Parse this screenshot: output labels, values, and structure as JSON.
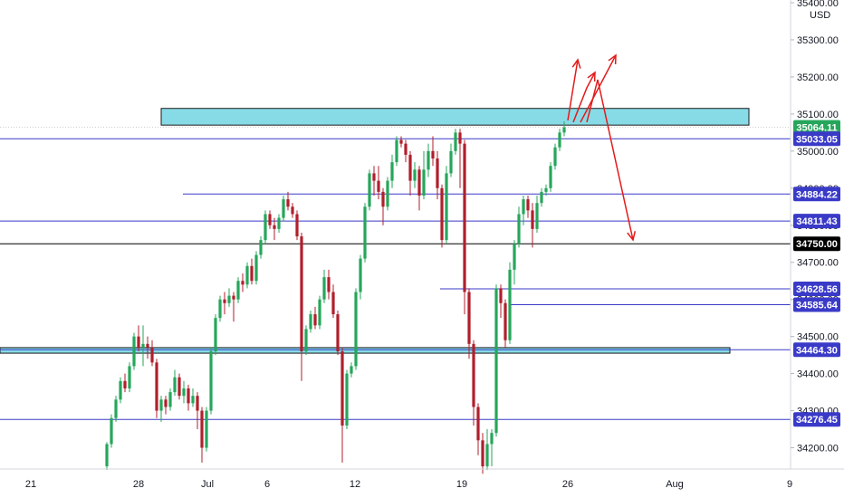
{
  "currency": "USD",
  "chart_data": {
    "type": "candlestick",
    "x_ticks": [
      "21",
      "28",
      "Jul",
      "6",
      "12",
      "19",
      "26",
      "Aug",
      "9"
    ],
    "y_ticks": [
      "34200.00",
      "34300.00",
      "34400.00",
      "34500.00",
      "34600.00",
      "34700.00",
      "34800.00",
      "34900.00",
      "35000.00",
      "35100.00",
      "35200.00",
      "35300.00",
      "35400.00"
    ],
    "ylim": [
      34150,
      35400
    ],
    "price_lines": [
      {
        "value": 35033.05,
        "label": "35033.05",
        "color": "#3a3ac8"
      },
      {
        "value": 34884.22,
        "label": "34884.22",
        "color": "#3a3ac8"
      },
      {
        "value": 34811.43,
        "label": "34811.43",
        "color": "#3a3ac8"
      },
      {
        "value": 34750.0,
        "label": "34750.00",
        "color": "#000000"
      },
      {
        "value": 34628.56,
        "label": "34628.56",
        "color": "#3a3ac8"
      },
      {
        "value": 34585.64,
        "label": "34585.64",
        "color": "#3a3ac8"
      },
      {
        "value": 34464.3,
        "label": "34464.30",
        "color": "#3a3ac8"
      },
      {
        "value": 34276.45,
        "label": "34276.45",
        "color": "#3a3ac8"
      }
    ],
    "last_price": {
      "value": 35064.11,
      "label": "35064.11",
      "color": "#26a65b"
    },
    "zones": [
      {
        "name": "resistance-zone",
        "low": 35070,
        "high": 35115,
        "color": "#87dbe6"
      },
      {
        "name": "support-zone",
        "low": 34455,
        "high": 34470,
        "color": "#87dbe6"
      }
    ],
    "up_color": "#26a65b",
    "down_color": "#b01f2c",
    "arrow_color": "#e31b1b",
    "candles": [
      [
        34150,
        34210,
        34140,
        34215
      ],
      [
        34210,
        34280,
        34200,
        34290
      ],
      [
        34280,
        34330,
        34270,
        34340
      ],
      [
        34330,
        34380,
        34320,
        34390
      ],
      [
        34380,
        34360,
        34350,
        34400
      ],
      [
        34360,
        34420,
        34350,
        34430
      ],
      [
        34420,
        34500,
        34410,
        34510
      ],
      [
        34500,
        34470,
        34460,
        34530
      ],
      [
        34470,
        34480,
        34420,
        34530
      ],
      [
        34480,
        34470,
        34440,
        34500
      ],
      [
        34470,
        34430,
        34420,
        34490
      ],
      [
        34430,
        34300,
        34280,
        34440
      ],
      [
        34300,
        34330,
        34270,
        34340
      ],
      [
        34330,
        34310,
        34290,
        34340
      ],
      [
        34310,
        34350,
        34300,
        34360
      ],
      [
        34350,
        34390,
        34340,
        34410
      ],
      [
        34390,
        34340,
        34330,
        34400
      ],
      [
        34340,
        34360,
        34320,
        34380
      ],
      [
        34360,
        34320,
        34300,
        34370
      ],
      [
        34320,
        34340,
        34310,
        34360
      ],
      [
        34340,
        34300,
        34250,
        34350
      ],
      [
        34300,
        34200,
        34160,
        34310
      ],
      [
        34200,
        34300,
        34190,
        34310
      ],
      [
        34300,
        34460,
        34290,
        34470
      ],
      [
        34460,
        34550,
        34450,
        34560
      ],
      [
        34550,
        34600,
        34540,
        34610
      ],
      [
        34600,
        34590,
        34560,
        34620
      ],
      [
        34590,
        34610,
        34580,
        34630
      ],
      [
        34610,
        34600,
        34540,
        34620
      ],
      [
        34600,
        34650,
        34590,
        34660
      ],
      [
        34650,
        34640,
        34620,
        34670
      ],
      [
        34640,
        34690,
        34630,
        34700
      ],
      [
        34690,
        34650,
        34640,
        34710
      ],
      [
        34650,
        34720,
        34640,
        34730
      ],
      [
        34720,
        34760,
        34710,
        34770
      ],
      [
        34760,
        34830,
        34750,
        34840
      ],
      [
        34830,
        34800,
        34790,
        34840
      ],
      [
        34800,
        34790,
        34760,
        34820
      ],
      [
        34790,
        34820,
        34780,
        34830
      ],
      [
        34820,
        34870,
        34810,
        34880
      ],
      [
        34870,
        34850,
        34840,
        34890
      ],
      [
        34850,
        34830,
        34820,
        34860
      ],
      [
        34830,
        34770,
        34760,
        34840
      ],
      [
        34770,
        34460,
        34380,
        34780
      ],
      [
        34460,
        34520,
        34450,
        34530
      ],
      [
        34520,
        34560,
        34510,
        34570
      ],
      [
        34560,
        34530,
        34520,
        34580
      ],
      [
        34530,
        34600,
        34520,
        34610
      ],
      [
        34600,
        34660,
        34590,
        34680
      ],
      [
        34660,
        34620,
        34600,
        34680
      ],
      [
        34620,
        34560,
        34550,
        34640
      ],
      [
        34560,
        34460,
        34450,
        34570
      ],
      [
        34460,
        34260,
        34160,
        34470
      ],
      [
        34260,
        34400,
        34250,
        34410
      ],
      [
        34400,
        34420,
        34390,
        34430
      ],
      [
        34420,
        34620,
        34410,
        34630
      ],
      [
        34620,
        34710,
        34600,
        34720
      ],
      [
        34710,
        34850,
        34700,
        34860
      ],
      [
        34850,
        34940,
        34840,
        34950
      ],
      [
        34940,
        34920,
        34880,
        34960
      ],
      [
        34920,
        34890,
        34870,
        34960
      ],
      [
        34890,
        34850,
        34800,
        34900
      ],
      [
        34850,
        34920,
        34840,
        34930
      ],
      [
        34920,
        34970,
        34900,
        34990
      ],
      [
        34970,
        35030,
        34960,
        35040
      ],
      [
        35030,
        35020,
        35010,
        35040
      ],
      [
        35020,
        34990,
        34970,
        35030
      ],
      [
        34990,
        34920,
        34880,
        35000
      ],
      [
        34920,
        34950,
        34900,
        34970
      ],
      [
        34950,
        34880,
        34840,
        34960
      ],
      [
        34880,
        34950,
        34870,
        35000
      ],
      [
        34950,
        35000,
        34930,
        35020
      ],
      [
        35000,
        34980,
        34960,
        35040
      ],
      [
        34980,
        34900,
        34870,
        35000
      ],
      [
        34900,
        34760,
        34740,
        34910
      ],
      [
        34760,
        34940,
        34750,
        34960
      ],
      [
        34940,
        35000,
        34930,
        35020
      ],
      [
        35000,
        35050,
        34990,
        35060
      ],
      [
        35050,
        35020,
        34900,
        35060
      ],
      [
        35020,
        34620,
        34560,
        35030
      ],
      [
        34620,
        34480,
        34440,
        34630
      ],
      [
        34480,
        34310,
        34260,
        34490
      ],
      [
        34310,
        34220,
        34180,
        34320
      ],
      [
        34220,
        34150,
        34130,
        34240
      ],
      [
        34150,
        34210,
        34140,
        34250
      ],
      [
        34210,
        34240,
        34150,
        34250
      ],
      [
        34240,
        34630,
        34230,
        34640
      ],
      [
        34630,
        34590,
        34550,
        34640
      ],
      [
        34590,
        34490,
        34470,
        34600
      ],
      [
        34490,
        34680,
        34480,
        34700
      ],
      [
        34680,
        34750,
        34640,
        34760
      ],
      [
        34750,
        34830,
        34740,
        34850
      ],
      [
        34830,
        34870,
        34800,
        34880
      ],
      [
        34870,
        34840,
        34820,
        34880
      ],
      [
        34840,
        34790,
        34740,
        34860
      ],
      [
        34790,
        34860,
        34780,
        34880
      ],
      [
        34860,
        34890,
        34850,
        34900
      ],
      [
        34890,
        34900,
        34880,
        34910
      ],
      [
        34900,
        34960,
        34890,
        34970
      ],
      [
        34960,
        35010,
        34950,
        35020
      ],
      [
        35010,
        35050,
        35000,
        35060
      ],
      [
        35050,
        35064,
        35040,
        35080
      ]
    ]
  }
}
